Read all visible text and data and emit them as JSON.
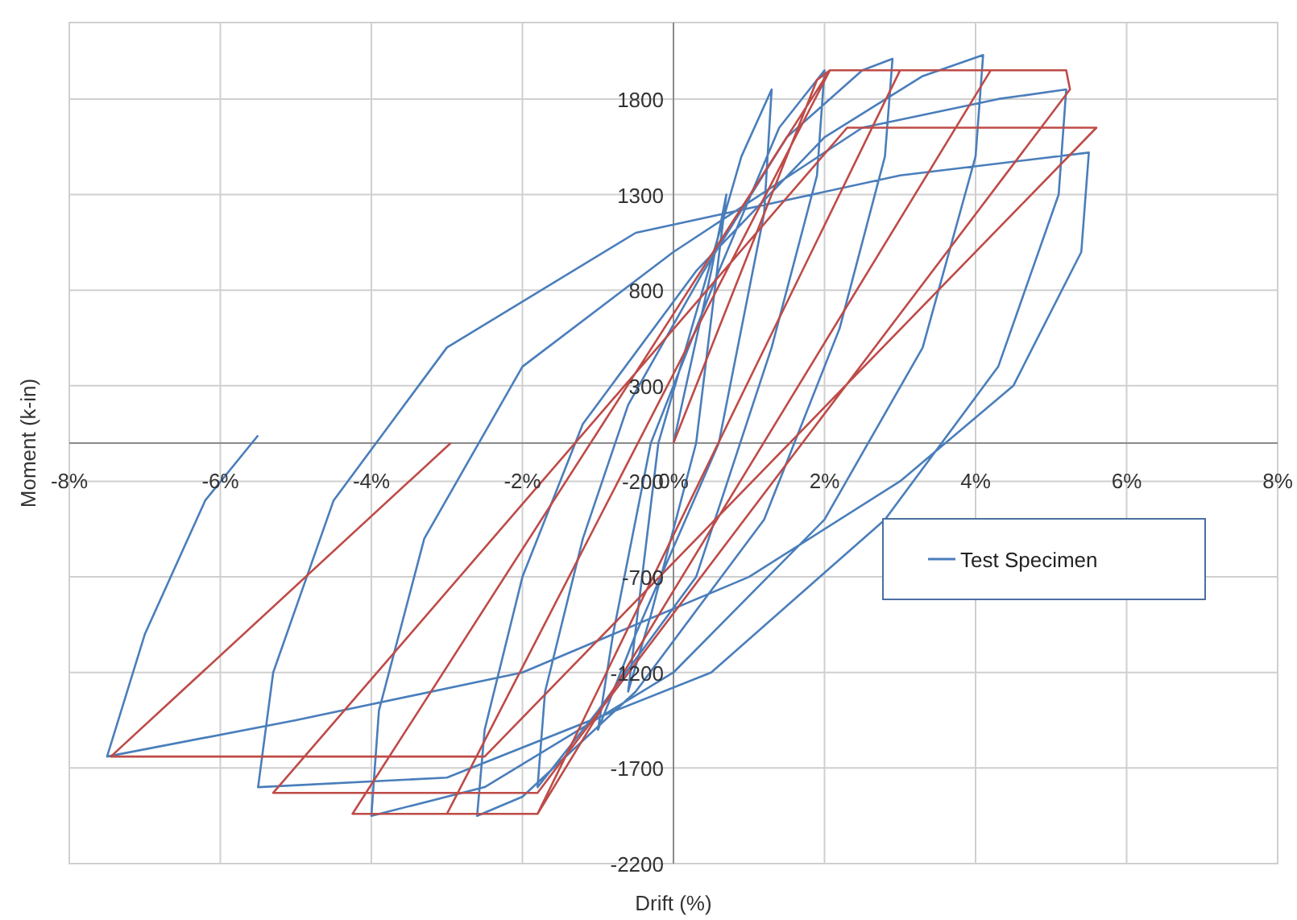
{
  "chart_data": {
    "type": "line",
    "xlabel": "Drift (%)",
    "ylabel": "Moment (k-in)",
    "xlim": [
      -8,
      8
    ],
    "ylim": [
      -2200,
      2200
    ],
    "xticks": [
      {
        "value": -8,
        "label": "-8%"
      },
      {
        "value": -6,
        "label": "-6%"
      },
      {
        "value": -4,
        "label": "-4%"
      },
      {
        "value": -2,
        "label": "-2%"
      },
      {
        "value": 0,
        "label": "0%"
      },
      {
        "value": 2,
        "label": "2%"
      },
      {
        "value": 4,
        "label": "4%"
      },
      {
        "value": 6,
        "label": "6%"
      },
      {
        "value": 8,
        "label": "8%"
      }
    ],
    "yticks": [
      -2200,
      -1700,
      -1200,
      -700,
      -200,
      300,
      800,
      1300,
      1800
    ],
    "grid": true,
    "legend": "right",
    "marker": "none",
    "line_style": "solid",
    "series": [
      {
        "name": "Test Specimen",
        "color": "#4a7ebb",
        "x": [
          0,
          0.5,
          0.7,
          0.3,
          -0.3,
          -0.6,
          -0.2,
          0.9,
          1.3,
          1.2,
          0.6,
          -0.5,
          -1.0,
          -0.8,
          -0.3,
          0.6,
          1.4,
          2.0,
          1.9,
          1.3,
          0.3,
          -1.0,
          -1.8,
          -1.7,
          -1.2,
          -0.6,
          0.4,
          1.5,
          2.5,
          2.9,
          2.8,
          2.2,
          1.2,
          -0.5,
          -2.0,
          -2.6,
          -2.5,
          -2.0,
          -1.2,
          0.3,
          2.0,
          3.3,
          4.1,
          4.0,
          3.3,
          2.0,
          0,
          -2.5,
          -4.0,
          -3.9,
          -3.3,
          -2.0,
          0,
          2.5,
          4.3,
          5.2,
          5.1,
          4.3,
          2.8,
          0.5,
          -3.0,
          -5.5,
          -5.3,
          -4.5,
          -3.0,
          -0.5,
          3.0,
          5.5,
          5.4,
          4.5,
          3.0,
          1.0,
          -2.0,
          -5.0,
          -7.5,
          -7.0,
          -6.2,
          -5.5
        ],
        "values": [
          0,
          900,
          1300,
          0,
          -900,
          -1300,
          0,
          1500,
          1850,
          1200,
          0,
          -1000,
          -1500,
          -1000,
          0,
          900,
          1650,
          1950,
          1400,
          500,
          -700,
          -1400,
          -1800,
          -1300,
          -500,
          200,
          900,
          1600,
          1950,
          2010,
          1500,
          600,
          -400,
          -1300,
          -1850,
          -1950,
          -1500,
          -700,
          100,
          900,
          1600,
          1920,
          2030,
          1500,
          500,
          -400,
          -1200,
          -1800,
          -1950,
          -1400,
          -500,
          400,
          1000,
          1650,
          1800,
          1850,
          1300,
          400,
          -400,
          -1200,
          -1750,
          -1800,
          -1200,
          -300,
          500,
          1100,
          1400,
          1520,
          1000,
          300,
          -200,
          -700,
          -1200,
          -1450,
          -1640,
          -1000,
          -300,
          40
        ]
      },
      {
        "color": "#be4b48",
        "x": [
          0,
          1.9,
          2.07,
          3.0,
          -1.8,
          -3.0,
          2.07,
          4.2,
          -1.8,
          -4.25,
          2.07,
          5.2,
          5.25,
          -1.8,
          -5.3,
          2.3,
          5.6,
          -2.5,
          -7.45,
          -2.95
        ],
        "values": [
          0,
          1900,
          1950,
          1950,
          -1940,
          -1940,
          1950,
          1950,
          -1940,
          -1940,
          1950,
          1950,
          1850,
          -1830,
          -1830,
          1650,
          1650,
          -1640,
          -1640,
          0
        ]
      }
    ]
  }
}
